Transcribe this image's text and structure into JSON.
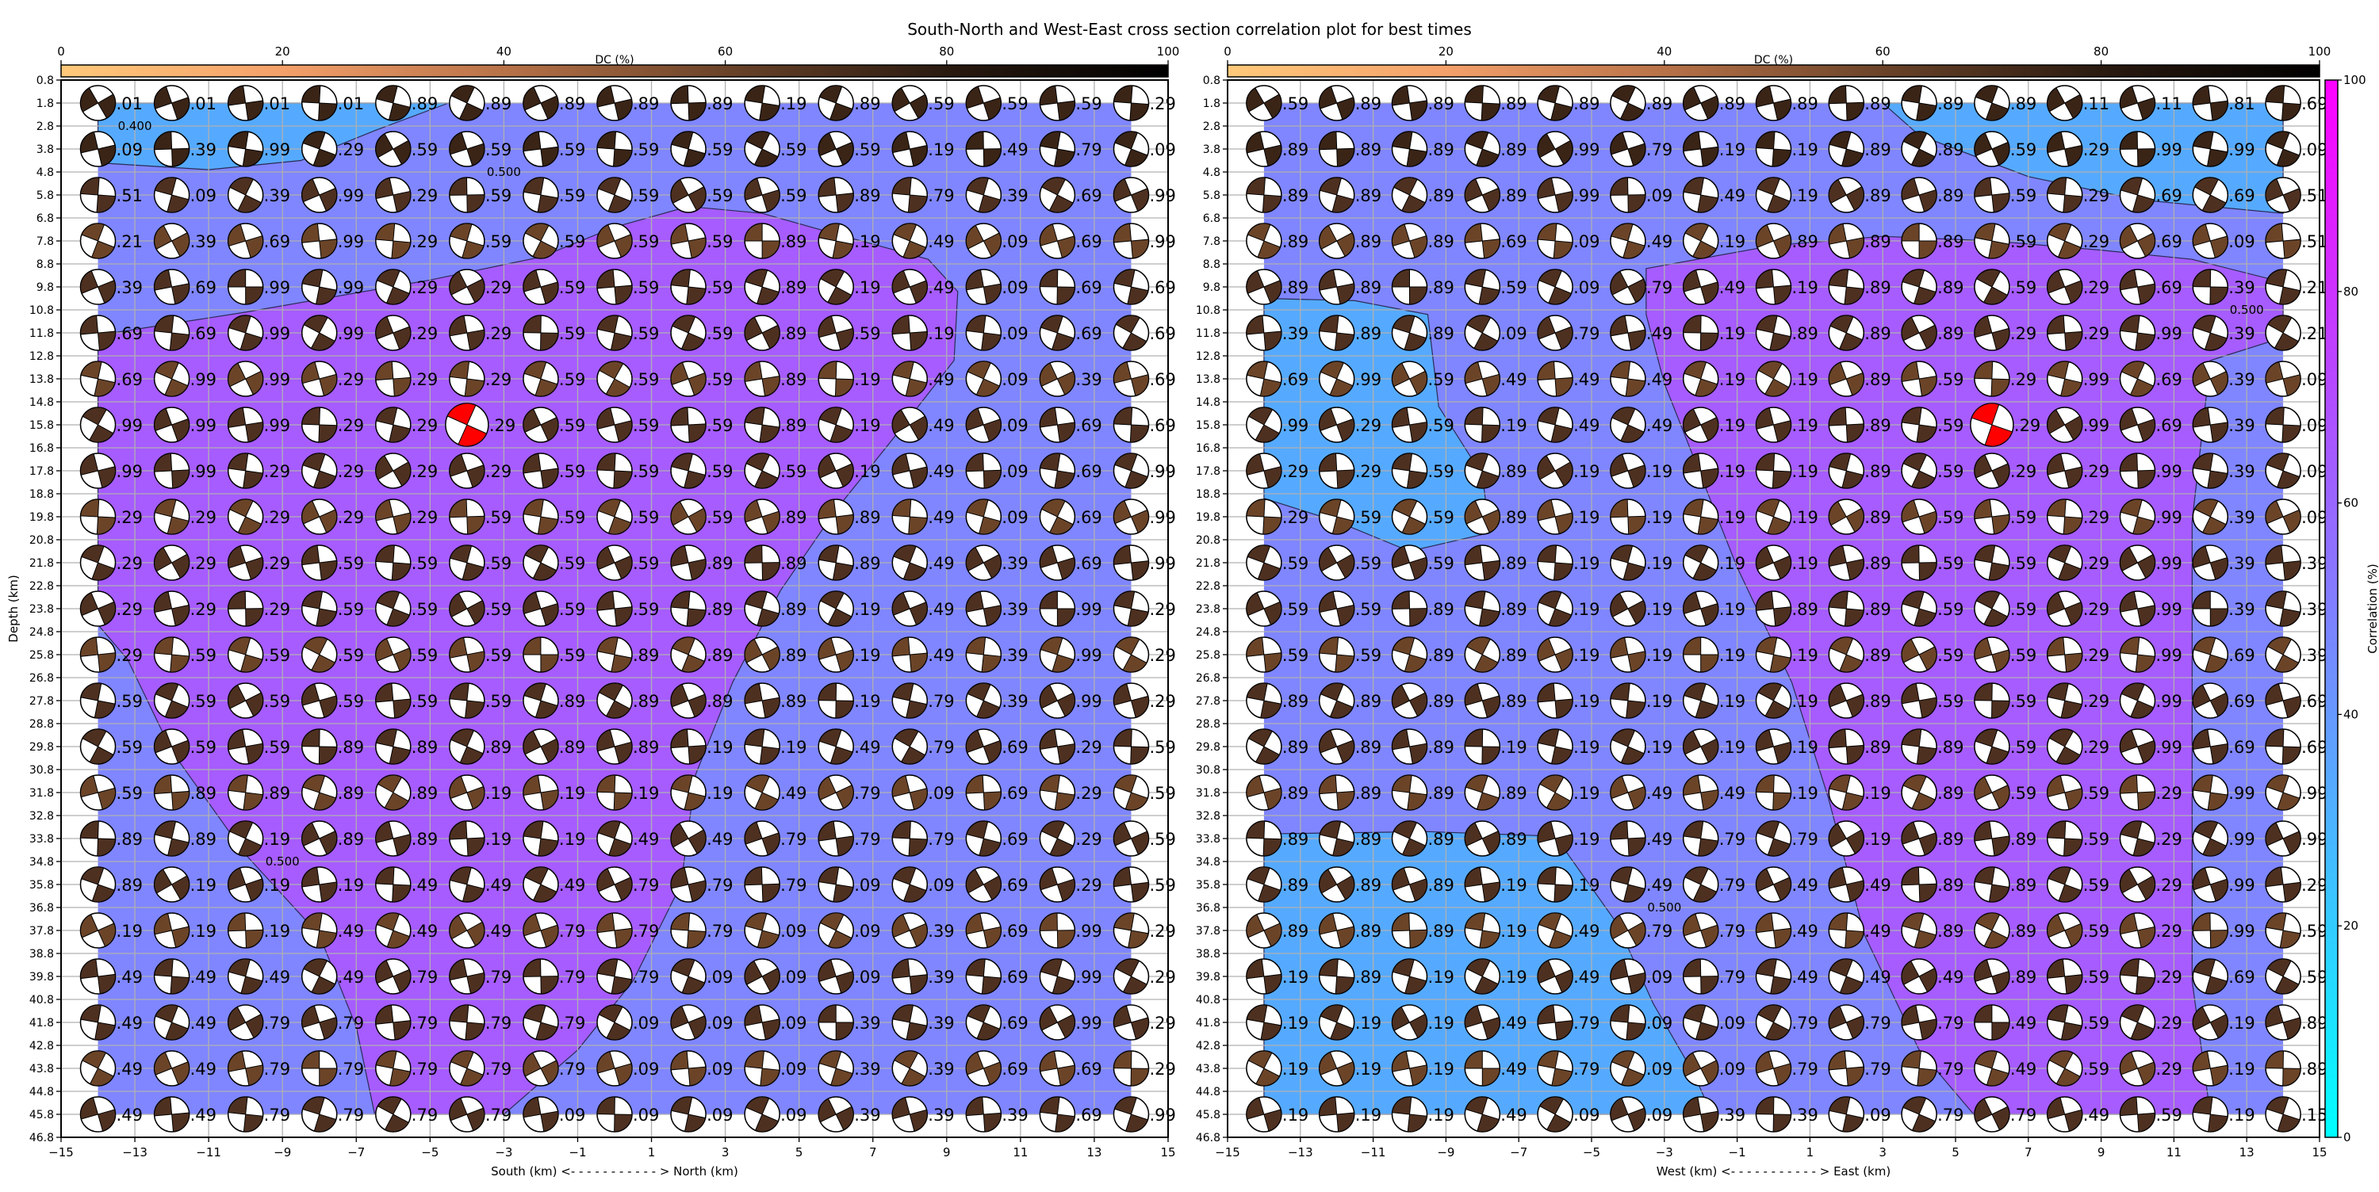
{
  "chart_data": {
    "type": "scatter",
    "title": "South-North and West-East cross section correlation plot for best times",
    "dc_colorbar": {
      "label": "DC (%)",
      "ticks": [
        "0",
        "20",
        "40",
        "60",
        "80",
        "100"
      ],
      "colors": [
        "#ffc97a",
        "#f4a06a",
        "#b87248",
        "#6a4329",
        "#2a1a10",
        "#000000"
      ]
    },
    "corr_colorbar": {
      "label": "Correlation (%)",
      "ticks": [
        "0",
        "20",
        "40",
        "60",
        "80",
        "100"
      ],
      "colors": [
        "#00ffff",
        "#ff00ff"
      ]
    },
    "region_colors": {
      "low": "#55aaff",
      "mid": "#7f86ff",
      "high": "#a65cff"
    },
    "best_color": "#ff0000",
    "y_ticks": [
      "0.8",
      "1.8",
      "2.8",
      "3.8",
      "4.8",
      "5.8",
      "6.8",
      "7.8",
      "8.8",
      "9.8",
      "10.8",
      "11.8",
      "12.8",
      "13.8",
      "14.8",
      "15.8",
      "16.8",
      "17.8",
      "18.8",
      "19.8",
      "20.8",
      "21.8",
      "22.8",
      "23.8",
      "24.8",
      "25.8",
      "26.8",
      "27.8",
      "28.8",
      "29.8",
      "30.8",
      "31.8",
      "32.8",
      "33.8",
      "34.8",
      "35.8",
      "36.8",
      "37.8",
      "38.8",
      "39.8",
      "40.8",
      "41.8",
      "42.8",
      "43.8",
      "44.8",
      "45.8",
      "46.8"
    ],
    "x_ticks": [
      "−15",
      "−13",
      "−11",
      "−9",
      "−7",
      "−5",
      "−3",
      "−1",
      "1",
      "3",
      "5",
      "7",
      "9",
      "11",
      "13",
      "15"
    ],
    "xlim": [
      -15,
      15
    ],
    "ylim": [
      46.8,
      0.8
    ],
    "ball_x": [
      -14,
      -12,
      -10,
      -8,
      -6,
      -4,
      -2,
      0,
      2,
      4,
      6,
      8,
      10,
      12,
      14
    ],
    "ball_depths": [
      1.8,
      3.8,
      5.8,
      7.8,
      9.8,
      11.8,
      13.8,
      15.8,
      17.8,
      19.8,
      21.8,
      23.8,
      25.8,
      27.8,
      29.8,
      31.8,
      33.8,
      35.8,
      37.8,
      39.8,
      41.8,
      43.8,
      45.8
    ],
    "panels": [
      {
        "xlabel": "South (km) <- - - - - - - - - - - > North (km)",
        "ylabel": "Depth (km)",
        "contour_labels": [
          "0.400",
          "0.500",
          "0.500"
        ],
        "best": {
          "row": 7,
          "col": 5
        },
        "labels": [
          [
            ".01",
            ".01",
            ".01",
            ".01",
            ".89",
            ".89",
            ".89",
            ".89",
            ".89",
            ".19",
            ".89",
            ".59",
            ".59",
            ".59",
            ".29"
          ],
          [
            ".09",
            ".39",
            ".99",
            ".29",
            ".59",
            ".59",
            ".59",
            ".59",
            ".59",
            ".59",
            ".59",
            ".19",
            ".49",
            ".79",
            ".09"
          ],
          [
            ".51",
            ".09",
            ".39",
            ".99",
            ".29",
            ".59",
            ".59",
            ".59",
            ".59",
            ".59",
            ".89",
            ".79",
            ".39",
            ".69",
            ".99"
          ],
          [
            ".21",
            ".39",
            ".69",
            ".99",
            ".29",
            ".59",
            ".59",
            ".59",
            ".59",
            ".89",
            ".19",
            ".49",
            ".09",
            ".69",
            ".99"
          ],
          [
            ".39",
            ".69",
            ".99",
            ".99",
            ".29",
            ".29",
            ".59",
            ".59",
            ".59",
            ".89",
            ".19",
            ".49",
            ".09",
            ".69",
            ".69"
          ],
          [
            ".69",
            ".69",
            ".99",
            ".99",
            ".29",
            ".29",
            ".59",
            ".59",
            ".59",
            ".89",
            ".59",
            ".19",
            ".09",
            ".69",
            ".69"
          ],
          [
            ".69",
            ".99",
            ".99",
            ".29",
            ".29",
            ".29",
            ".59",
            ".59",
            ".59",
            ".89",
            ".19",
            ".49",
            ".09",
            ".39",
            ".69"
          ],
          [
            ".99",
            ".99",
            ".99",
            ".29",
            ".29",
            ".29",
            ".59",
            ".59",
            ".59",
            ".89",
            ".19",
            ".49",
            ".09",
            ".69",
            ".69"
          ],
          [
            ".99",
            ".99",
            ".29",
            ".29",
            ".29",
            ".29",
            ".59",
            ".59",
            ".59",
            ".59",
            ".19",
            ".49",
            ".09",
            ".69",
            ".99"
          ],
          [
            ".29",
            ".29",
            ".29",
            ".29",
            ".29",
            ".59",
            ".59",
            ".59",
            ".59",
            ".89",
            ".89",
            ".49",
            ".09",
            ".69",
            ".99"
          ],
          [
            ".29",
            ".29",
            ".29",
            ".59",
            ".59",
            ".59",
            ".59",
            ".59",
            ".89",
            ".89",
            ".89",
            ".49",
            ".39",
            ".69",
            ".99"
          ],
          [
            ".29",
            ".29",
            ".29",
            ".59",
            ".59",
            ".59",
            ".59",
            ".59",
            ".89",
            ".89",
            ".19",
            ".49",
            ".39",
            ".99",
            ".29"
          ],
          [
            ".29",
            ".59",
            ".59",
            ".59",
            ".59",
            ".59",
            ".59",
            ".89",
            ".89",
            ".89",
            ".19",
            ".49",
            ".39",
            ".99",
            ".29"
          ],
          [
            ".59",
            ".59",
            ".59",
            ".59",
            ".59",
            ".59",
            ".89",
            ".89",
            ".89",
            ".89",
            ".19",
            ".79",
            ".39",
            ".99",
            ".29"
          ],
          [
            ".59",
            ".59",
            ".59",
            ".89",
            ".89",
            ".89",
            ".89",
            ".89",
            ".19",
            ".19",
            ".49",
            ".79",
            ".69",
            ".29",
            ".59"
          ],
          [
            ".59",
            ".89",
            ".89",
            ".89",
            ".89",
            ".19",
            ".19",
            ".19",
            ".19",
            ".49",
            ".79",
            ".09",
            ".69",
            ".29",
            ".59"
          ],
          [
            ".89",
            ".89",
            ".19",
            ".89",
            ".89",
            ".19",
            ".19",
            ".49",
            ".49",
            ".79",
            ".79",
            ".79",
            ".69",
            ".29",
            ".59"
          ],
          [
            ".89",
            ".19",
            ".19",
            ".19",
            ".49",
            ".49",
            ".49",
            ".79",
            ".79",
            ".79",
            ".09",
            ".09",
            ".69",
            ".29",
            ".59"
          ],
          [
            ".19",
            ".19",
            ".19",
            ".49",
            ".49",
            ".49",
            ".79",
            ".79",
            ".79",
            ".09",
            ".09",
            ".39",
            ".69",
            ".99",
            ".29"
          ],
          [
            ".49",
            ".49",
            ".49",
            ".49",
            ".79",
            ".79",
            ".79",
            ".79",
            ".09",
            ".09",
            ".09",
            ".39",
            ".69",
            ".99",
            ".29"
          ],
          [
            ".49",
            ".49",
            ".79",
            ".79",
            ".79",
            ".79",
            ".79",
            ".09",
            ".09",
            ".09",
            ".39",
            ".39",
            ".69",
            ".99",
            ".29"
          ],
          [
            ".49",
            ".49",
            ".79",
            ".79",
            ".79",
            ".79",
            ".79",
            ".09",
            ".09",
            ".09",
            ".39",
            ".39",
            ".69",
            ".69",
            ".29"
          ],
          [
            ".49",
            ".49",
            ".79",
            ".79",
            ".79",
            ".79",
            ".09",
            ".09",
            ".09",
            ".09",
            ".39",
            ".39",
            ".39",
            ".69",
            ".99"
          ]
        ]
      },
      {
        "xlabel": "West (km) <- - - - - - - - - - - > East (km)",
        "ylabel": "",
        "contour_labels": [
          "0.500",
          "0.500"
        ],
        "best": {
          "row": 7,
          "col": 10
        },
        "labels": [
          [
            ".59",
            ".89",
            ".89",
            ".89",
            ".89",
            ".89",
            ".89",
            ".89",
            ".89",
            ".89",
            ".89",
            ".11",
            ".11",
            ".81",
            ".69"
          ],
          [
            ".89",
            ".89",
            ".89",
            ".89",
            ".99",
            ".79",
            ".19",
            ".19",
            ".89",
            ".89",
            ".59",
            ".29",
            ".99",
            ".99",
            ".09"
          ],
          [
            ".89",
            ".89",
            ".89",
            ".89",
            ".99",
            ".09",
            ".49",
            ".19",
            ".89",
            ".89",
            ".59",
            ".29",
            ".69",
            ".69",
            ".51"
          ],
          [
            ".89",
            ".89",
            ".89",
            ".69",
            ".09",
            ".49",
            ".19",
            ".89",
            ".89",
            ".89",
            ".59",
            ".29",
            ".69",
            ".09",
            ".51"
          ],
          [
            ".89",
            ".89",
            ".89",
            ".59",
            ".09",
            ".79",
            ".49",
            ".19",
            ".89",
            ".89",
            ".59",
            ".29",
            ".69",
            ".39",
            ".21"
          ],
          [
            ".39",
            ".89",
            ".89",
            ".09",
            ".79",
            ".49",
            ".19",
            ".89",
            ".89",
            ".89",
            ".29",
            ".29",
            ".99",
            ".39",
            ".21"
          ],
          [
            ".69",
            ".99",
            ".59",
            ".49",
            ".49",
            ".49",
            ".19",
            ".19",
            ".89",
            ".59",
            ".29",
            ".99",
            ".69",
            ".39",
            ".09"
          ],
          [
            ".99",
            ".29",
            ".59",
            ".19",
            ".49",
            ".49",
            ".19",
            ".19",
            ".89",
            ".59",
            ".29",
            ".99",
            ".69",
            ".39",
            ".09"
          ],
          [
            ".29",
            ".29",
            ".59",
            ".89",
            ".19",
            ".19",
            ".19",
            ".19",
            ".89",
            ".59",
            ".29",
            ".29",
            ".99",
            ".39",
            ".09"
          ],
          [
            ".29",
            ".59",
            ".59",
            ".89",
            ".19",
            ".19",
            ".19",
            ".19",
            ".89",
            ".59",
            ".59",
            ".29",
            ".99",
            ".39",
            ".09"
          ],
          [
            ".59",
            ".59",
            ".59",
            ".89",
            ".19",
            ".19",
            ".19",
            ".19",
            ".89",
            ".59",
            ".59",
            ".29",
            ".99",
            ".39",
            ".39"
          ],
          [
            ".59",
            ".59",
            ".89",
            ".89",
            ".19",
            ".19",
            ".19",
            ".89",
            ".89",
            ".59",
            ".59",
            ".29",
            ".99",
            ".39",
            ".39"
          ],
          [
            ".59",
            ".59",
            ".89",
            ".89",
            ".19",
            ".19",
            ".19",
            ".19",
            ".89",
            ".59",
            ".59",
            ".29",
            ".99",
            ".69",
            ".39"
          ],
          [
            ".89",
            ".89",
            ".89",
            ".89",
            ".19",
            ".19",
            ".19",
            ".19",
            ".89",
            ".59",
            ".59",
            ".29",
            ".99",
            ".69",
            ".69"
          ],
          [
            ".89",
            ".89",
            ".89",
            ".19",
            ".19",
            ".19",
            ".19",
            ".19",
            ".89",
            ".89",
            ".59",
            ".29",
            ".99",
            ".69",
            ".69"
          ],
          [
            ".89",
            ".89",
            ".89",
            ".89",
            ".19",
            ".49",
            ".49",
            ".19",
            ".19",
            ".89",
            ".59",
            ".59",
            ".29",
            ".99",
            ".99"
          ],
          [
            ".89",
            ".89",
            ".89",
            ".89",
            ".19",
            ".49",
            ".79",
            ".79",
            ".19",
            ".89",
            ".89",
            ".59",
            ".29",
            ".99",
            ".99"
          ],
          [
            ".89",
            ".89",
            ".89",
            ".19",
            ".19",
            ".49",
            ".79",
            ".49",
            ".49",
            ".89",
            ".89",
            ".59",
            ".29",
            ".99",
            ".29"
          ],
          [
            ".89",
            ".89",
            ".89",
            ".19",
            ".49",
            ".79",
            ".79",
            ".49",
            ".49",
            ".89",
            ".89",
            ".59",
            ".29",
            ".99",
            ".59"
          ],
          [
            ".19",
            ".89",
            ".19",
            ".19",
            ".49",
            ".09",
            ".79",
            ".49",
            ".49",
            ".49",
            ".89",
            ".59",
            ".29",
            ".69",
            ".59"
          ],
          [
            ".19",
            ".19",
            ".19",
            ".49",
            ".79",
            ".09",
            ".09",
            ".79",
            ".79",
            ".79",
            ".49",
            ".59",
            ".29",
            ".19",
            ".89"
          ],
          [
            ".19",
            ".19",
            ".19",
            ".49",
            ".79",
            ".09",
            ".09",
            ".79",
            ".79",
            ".79",
            ".49",
            ".59",
            ".29",
            ".19",
            ".89"
          ],
          [
            ".19",
            ".19",
            ".19",
            ".49",
            ".09",
            ".09",
            ".39",
            ".39",
            ".09",
            ".79",
            ".79",
            ".49",
            ".59",
            ".19",
            ".15"
          ]
        ]
      }
    ]
  }
}
